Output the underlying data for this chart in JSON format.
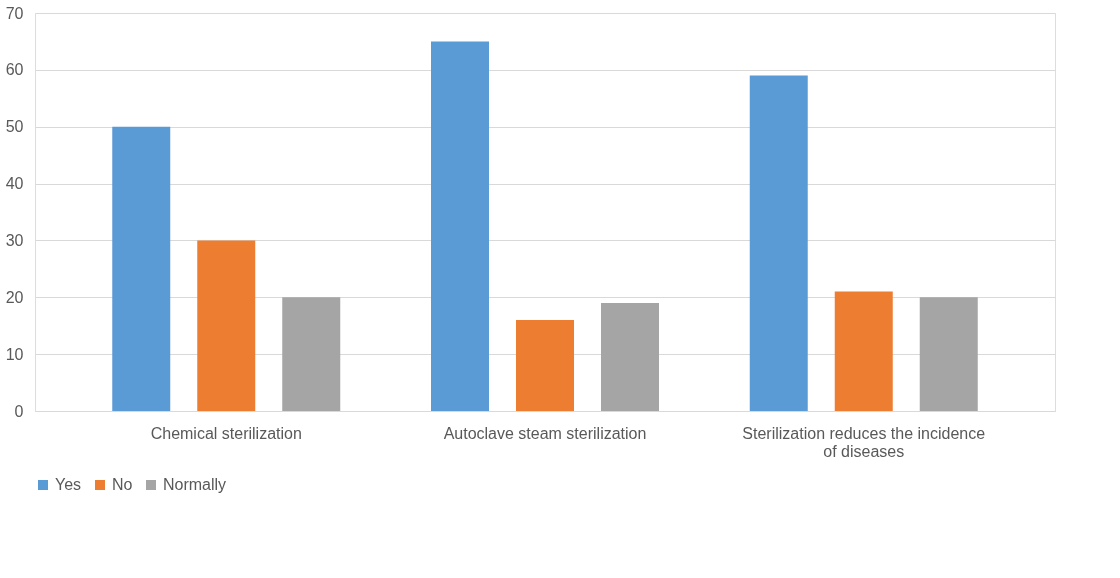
{
  "chart_data": {
    "type": "bar",
    "categories": [
      "Chemical sterilization",
      "Autoclave steam sterilization",
      "Sterilization reduces the incidence of diseases"
    ],
    "series": [
      {
        "name": "Yes",
        "color": "#5b9bd5",
        "values": [
          50,
          65,
          59
        ]
      },
      {
        "name": "No",
        "color": "#ed7d31",
        "values": [
          30,
          16,
          21
        ]
      },
      {
        "name": "Normally",
        "color": "#a5a5a5",
        "values": [
          20,
          19,
          20
        ]
      }
    ],
    "ylim": [
      0,
      70
    ],
    "yticks": [
      0,
      10,
      20,
      30,
      40,
      50,
      60,
      70
    ],
    "grid": "y",
    "legend": "bottom"
  }
}
